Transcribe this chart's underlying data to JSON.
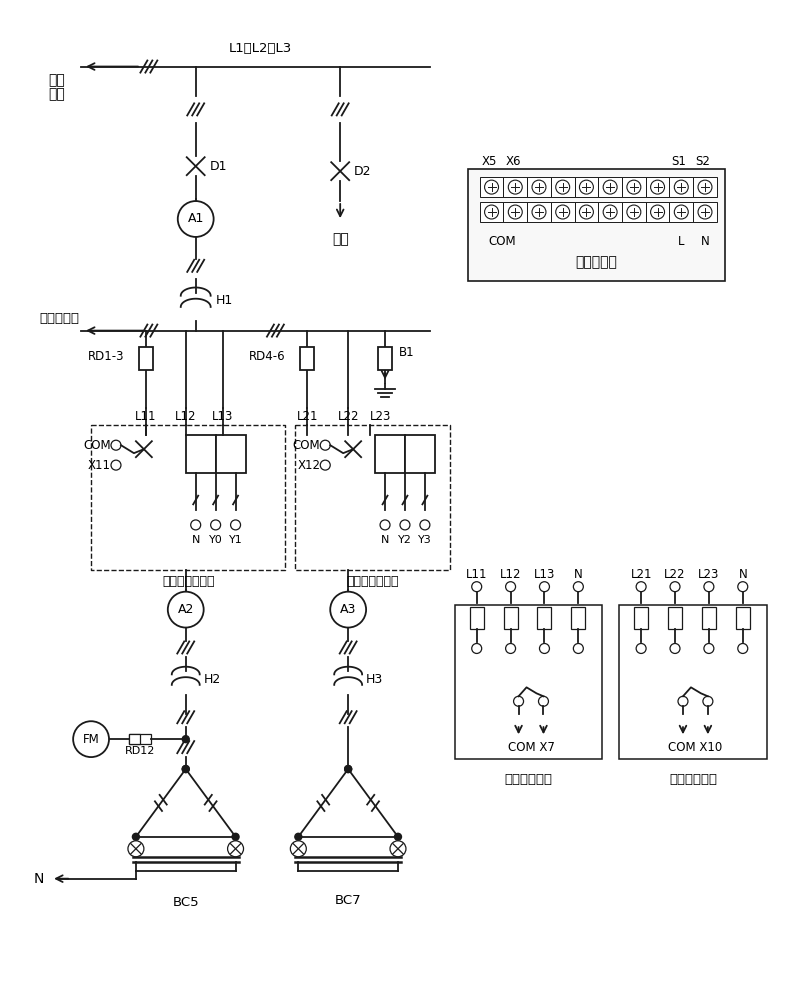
{
  "bg_color": "#ffffff",
  "line_color": "#1a1a1a",
  "fig_width": 7.88,
  "fig_height": 10.0,
  "labels": {
    "three_phase_1": "三相",
    "three_phase_2": "电网",
    "L1L2L3": "L1、L2、L3",
    "D1": "D1",
    "D2": "D2",
    "backup": "备用",
    "A1": "A1",
    "H1": "H1",
    "to_furnace": "至单晶硅炉",
    "RD1_3": "RD1-3",
    "RD4_6": "RD4-6",
    "B1": "B1",
    "L11": "L11",
    "L12": "L12",
    "L13": "L13",
    "L21": "L21",
    "L22": "L22",
    "L23": "L23",
    "COM1": "COM",
    "X11": "X11",
    "COM2": "COM",
    "X12": "X12",
    "N_Y0_Y1": "N Y0Y1",
    "N_Y2_Y3": "N Y2Y3",
    "circuit1": "第一电动断路器",
    "circuit2": "第二电动断路器",
    "A2": "A2",
    "A3": "A3",
    "H2": "H2",
    "H3": "H3",
    "FM": "FM",
    "RD12": "RD12",
    "N_label": "N",
    "BC5": "BC5",
    "BC7": "BC7",
    "harmonic_detector": "谐波检测仪",
    "X5": "X5",
    "X6": "X6",
    "S1": "S1",
    "S2": "S2",
    "COM_h": "COM",
    "L_h": "L",
    "N_h": "N",
    "fifth_signal": "五次断相信号",
    "seventh_signal": "七次断相信号",
    "L11b": "L11",
    "L12b": "L12",
    "L13b": "L13",
    "Nb1": "N",
    "L21b": "L21",
    "L22b": "L22",
    "L23b": "L23",
    "Nb2": "N",
    "COM_X7": "COM X7",
    "COM_X10": "COM X10"
  }
}
